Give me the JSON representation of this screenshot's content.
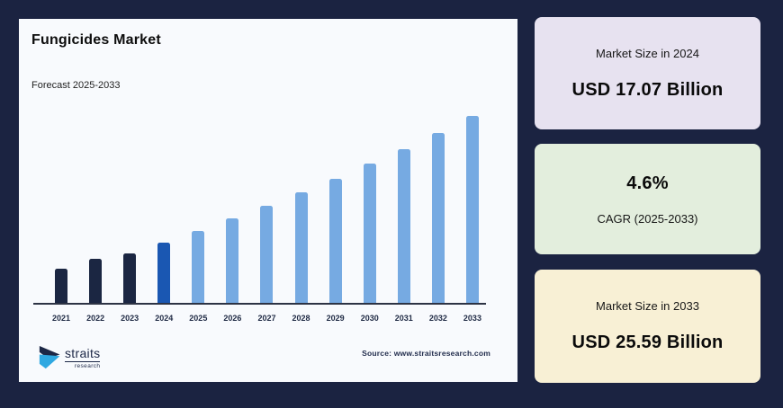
{
  "app": {
    "background": "#1b2341"
  },
  "chart_card": {
    "background": "#f8fafd",
    "title": "Fungicides Market",
    "subtitle": "Forecast 2025-2033",
    "source": "Source: www.straitsresearch.com",
    "logo": {
      "name": "straits",
      "sub": "research",
      "mark_dark_color": "#1c2746",
      "mark_cyan_color": "#2fa8e1"
    }
  },
  "chart_data": {
    "type": "bar",
    "title": "Fungicides Market",
    "subtitle": "Forecast 2025-2033",
    "unit": "USD Billion",
    "categories": [
      "2021",
      "2022",
      "2023",
      "2024",
      "2025",
      "2026",
      "2027",
      "2028",
      "2029",
      "2030",
      "2031",
      "2032",
      "2033"
    ],
    "values": [
      15.31,
      15.98,
      16.35,
      17.07,
      17.86,
      18.68,
      19.54,
      20.43,
      21.37,
      22.36,
      23.38,
      24.46,
      25.59
    ],
    "segments": [
      "historical",
      "historical",
      "historical",
      "base",
      "forecast",
      "forecast",
      "forecast",
      "forecast",
      "forecast",
      "forecast",
      "forecast",
      "forecast",
      "forecast"
    ],
    "colors": {
      "historical": "#1b2642",
      "base": "#1a57b2",
      "forecast": "#76aae2"
    },
    "xlabel": "",
    "ylabel": "",
    "ylim": [
      13,
      26
    ],
    "baseline_value": 13,
    "grid": false,
    "legend": "none"
  },
  "panels": [
    {
      "label": "Market Size in 2024",
      "value": "USD 17.07 Billion",
      "background": "#e7e2f0"
    },
    {
      "value": "4.6%",
      "label": "CAGR (2025-2033)",
      "background": "#e3eedd"
    },
    {
      "label": "Market Size in 2033",
      "value": "USD 25.59 Billion",
      "background": "#f8f0d5"
    }
  ]
}
